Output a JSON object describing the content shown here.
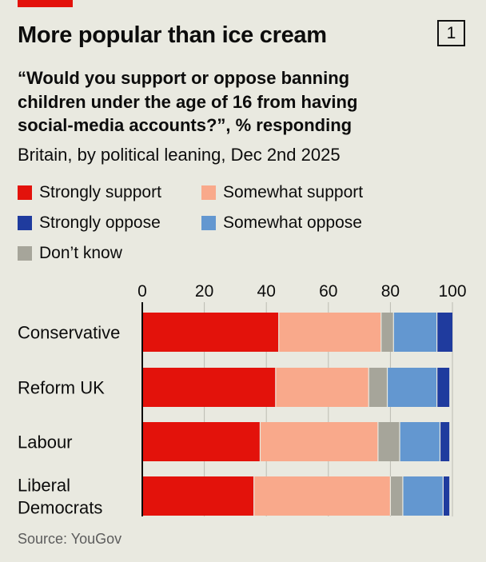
{
  "header": {
    "title": "More popular than ice cream",
    "chart_number": "1",
    "subtitle": "“Would you support or oppose banning children under the age of 16 from having social-media accounts?”, % responding",
    "subsubtitle": "Britain, by political leaning, Dec 2nd 2025"
  },
  "legend": [
    {
      "label": "Strongly support",
      "color": "#e3120b"
    },
    {
      "label": "Somewhat support",
      "color": "#f9a98b"
    },
    {
      "label": "Strongly oppose",
      "color": "#1f3b9e"
    },
    {
      "label": "Somewhat oppose",
      "color": "#6397d0"
    },
    {
      "label": "Don’t know",
      "color": "#a6a59a"
    }
  ],
  "source": "Source: YouGov",
  "chart_data": {
    "type": "bar",
    "orientation": "horizontal",
    "stacked": true,
    "title": "More popular than ice cream",
    "subtitle": "“Would you support or oppose banning children under the age of 16 from having social-media accounts?”, % responding",
    "xlim": [
      0,
      100
    ],
    "xticks": [
      0,
      20,
      40,
      60,
      80,
      100
    ],
    "categories": [
      [
        "Conservative"
      ],
      [
        "Reform UK"
      ],
      [
        "Labour"
      ],
      [
        "Liberal",
        "Democrats"
      ]
    ],
    "series": [
      {
        "name": "Strongly support",
        "color": "#e3120b",
        "values": [
          44,
          43,
          38,
          36
        ]
      },
      {
        "name": "Somewhat support",
        "color": "#f9a98b",
        "values": [
          33,
          30,
          38,
          44
        ]
      },
      {
        "name": "Don’t know",
        "color": "#a6a59a",
        "values": [
          4,
          6,
          7,
          4
        ]
      },
      {
        "name": "Somewhat oppose",
        "color": "#6397d0",
        "values": [
          14,
          16,
          13,
          13
        ]
      },
      {
        "name": "Strongly oppose",
        "color": "#1f3b9e",
        "values": [
          5,
          4,
          3,
          2
        ]
      }
    ]
  }
}
